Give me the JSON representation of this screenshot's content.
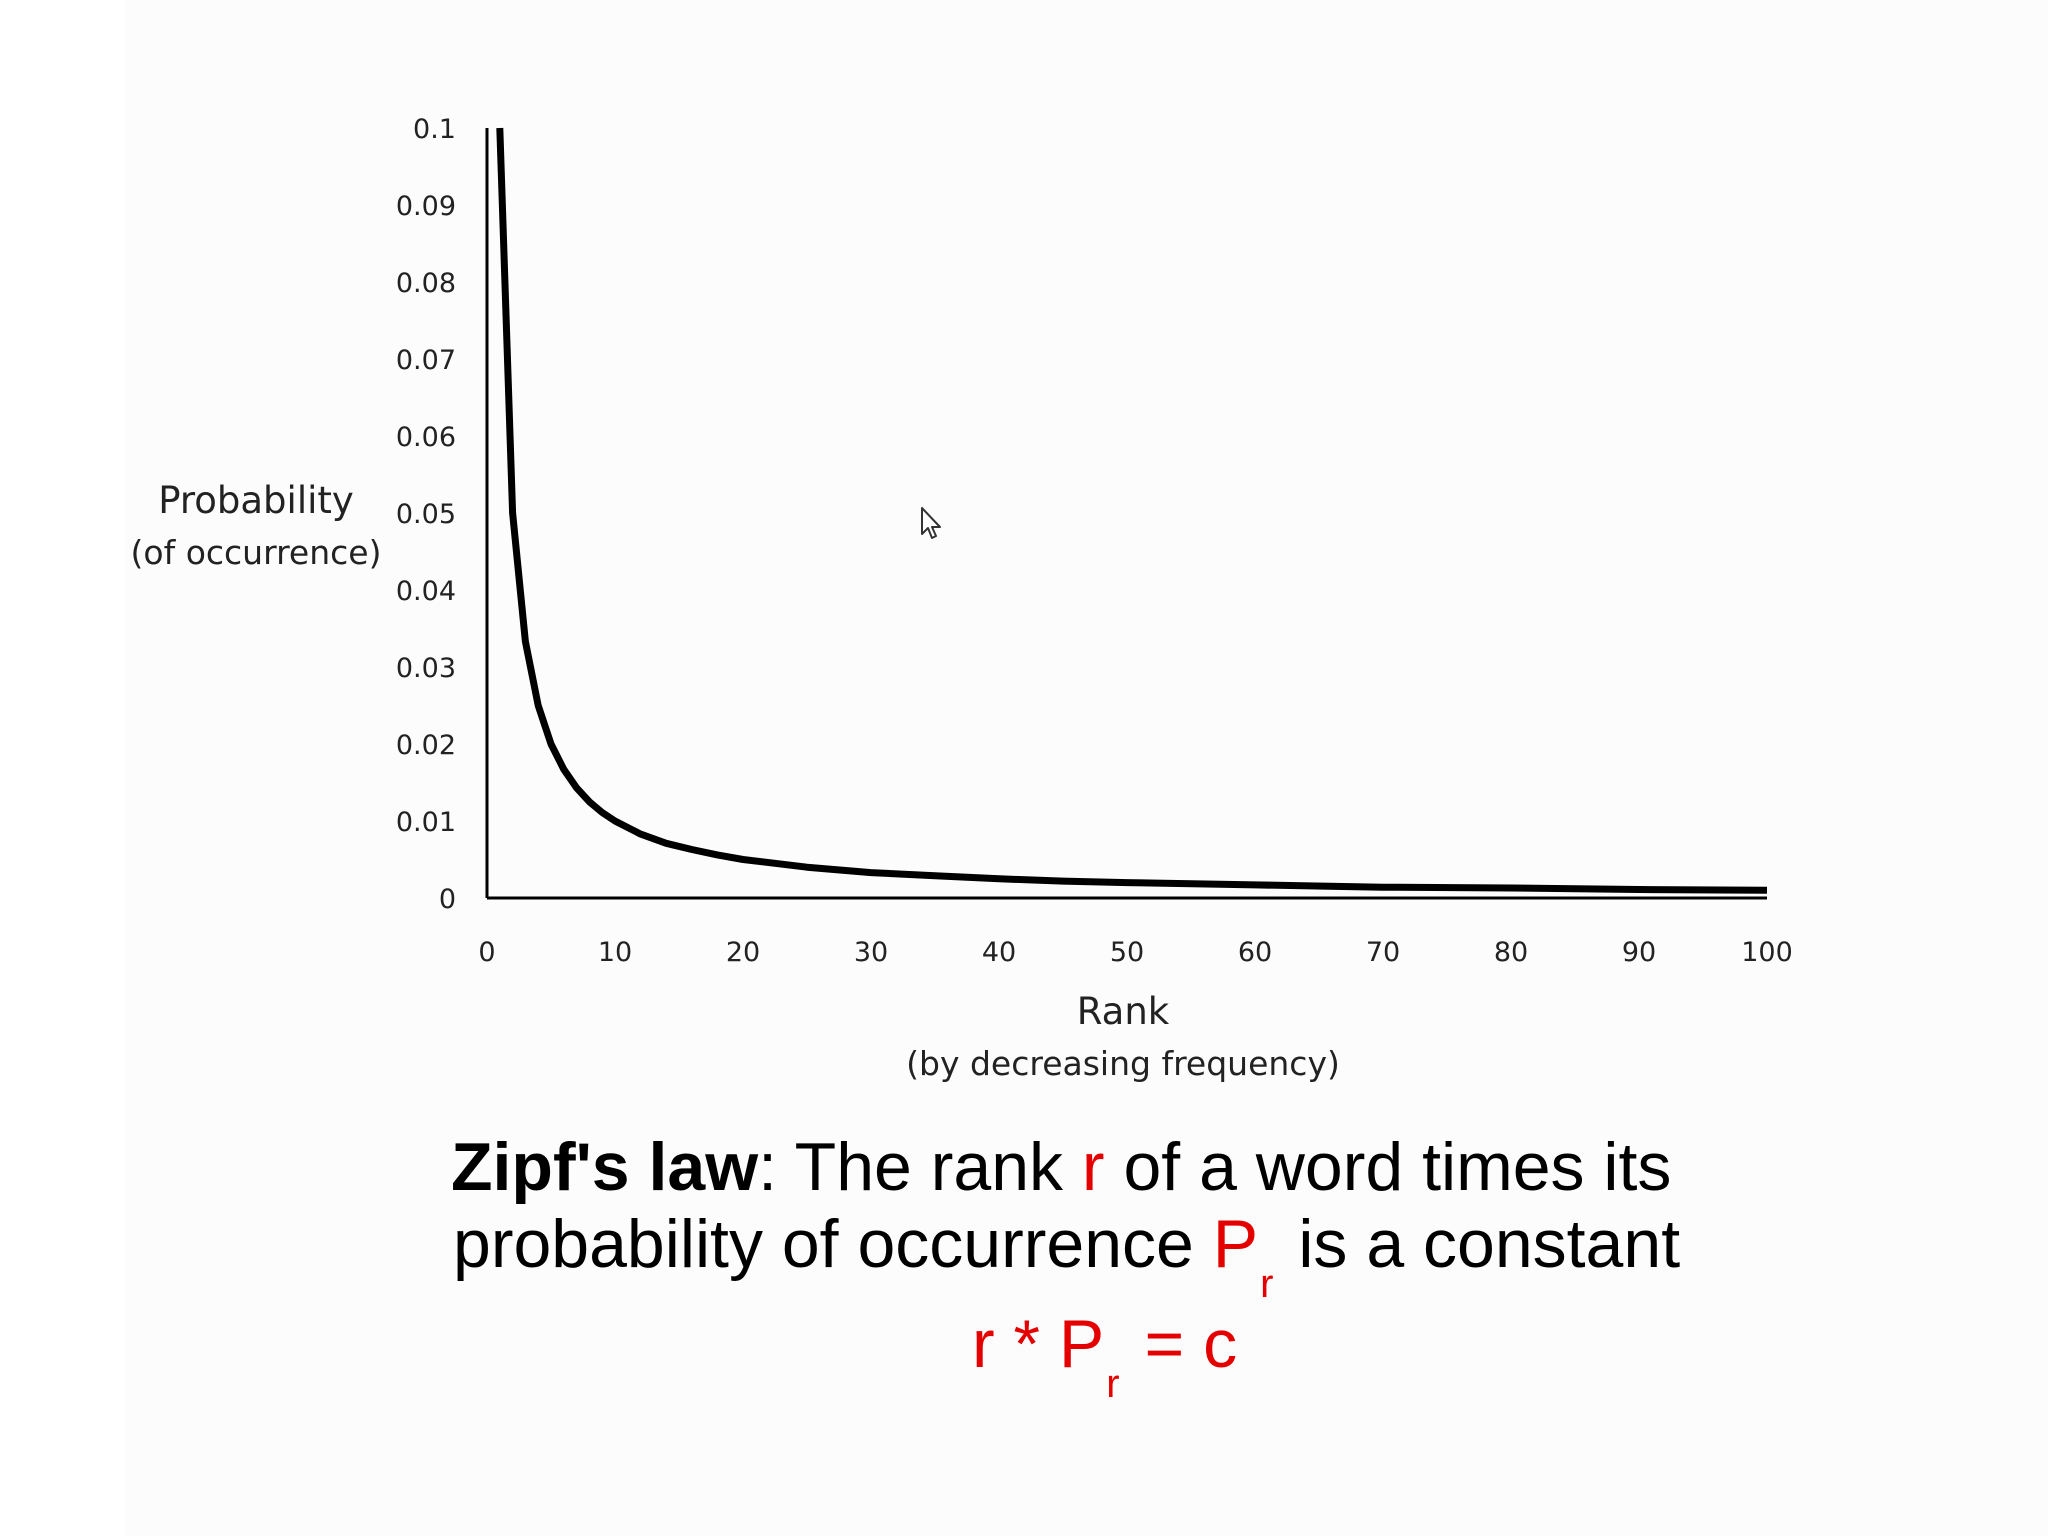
{
  "chart_data": {
    "type": "line",
    "ylabel": "Probability",
    "ylabel_sub": "(of occurrence)",
    "xlabel": "Rank",
    "xlabel_sub": "(by decreasing frequency)",
    "xlim": [
      0,
      100
    ],
    "ylim": [
      0,
      0.1
    ],
    "x_ticks": [
      "0",
      "10",
      "20",
      "30",
      "40",
      "50",
      "60",
      "70",
      "80",
      "90",
      "100"
    ],
    "y_ticks": [
      "0",
      "0.01",
      "0.02",
      "0.03",
      "0.04",
      "0.05",
      "0.06",
      "0.07",
      "0.08",
      "0.09",
      "0.1"
    ],
    "grid": false,
    "series": [
      {
        "color": "#000000",
        "x": [
          1,
          2,
          3,
          4,
          5,
          6,
          7,
          8,
          9,
          10,
          12,
          14,
          16,
          18,
          20,
          25,
          30,
          35,
          40,
          45,
          50,
          60,
          70,
          80,
          90,
          100
        ],
        "y": [
          0.1,
          0.05,
          0.0333,
          0.025,
          0.02,
          0.0167,
          0.0143,
          0.0125,
          0.0111,
          0.01,
          0.0083,
          0.0071,
          0.0063,
          0.0056,
          0.005,
          0.004,
          0.0033,
          0.0029,
          0.0025,
          0.0022,
          0.002,
          0.0017,
          0.0014,
          0.0013,
          0.0011,
          0.001
        ]
      }
    ]
  },
  "caption": {
    "term": "Zipf's law",
    "colon": ":",
    "line1_a": " The rank ",
    "var_r": "r",
    "line1_b": " of a word times its",
    "line2_a": "probability of occurrence ",
    "var_P": "P",
    "sub_r": "r",
    "line2_b": " is a constant"
  },
  "formula": {
    "r": "r",
    "times": " * ",
    "P": "P",
    "sub": "r",
    "equals_c": " = c"
  },
  "icons": {
    "cursor": "mouse-pointer-icon"
  }
}
